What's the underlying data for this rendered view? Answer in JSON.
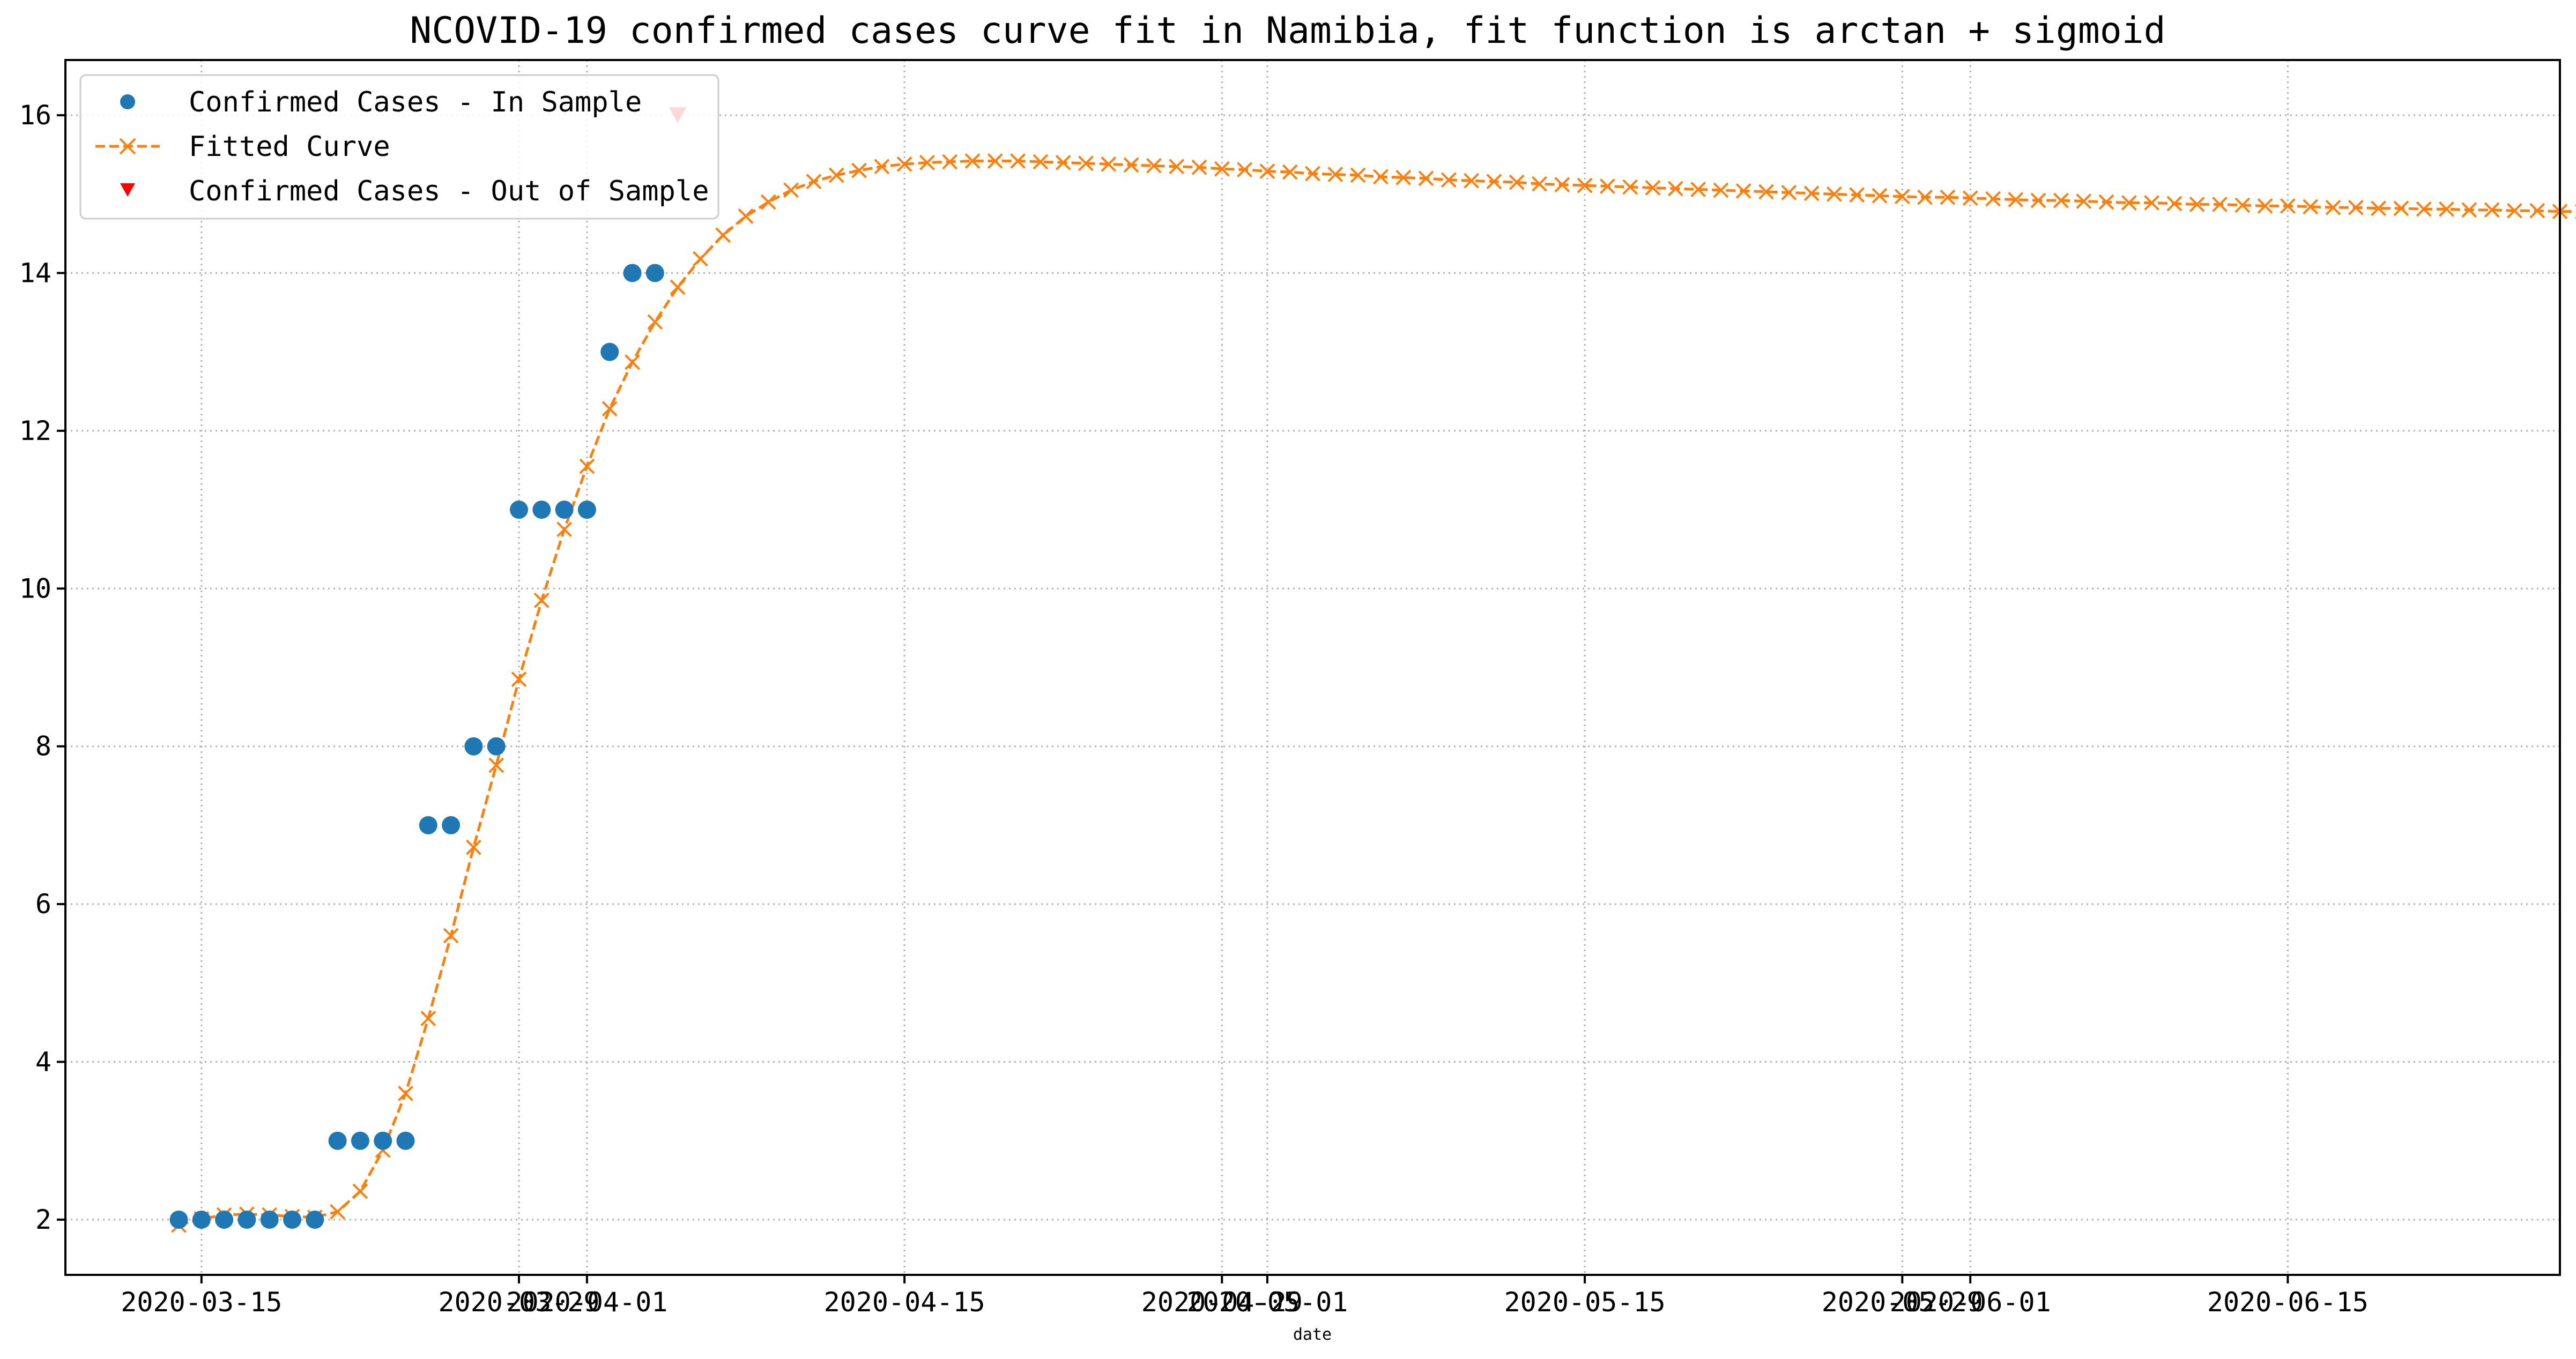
{
  "chart_data": {
    "type": "line",
    "title": "NCOVID-19 confirmed cases curve fit in Namibia, fit function is arctan + sigmoid",
    "xlabel": "date",
    "ylabel": "",
    "x_axis": "date",
    "xlim": [
      "2020-03-09",
      "2020-06-27"
    ],
    "ylim": [
      1.3,
      16.7
    ],
    "grid": true,
    "legend_position": "top-left",
    "x_ticks": [
      "2020-03-15",
      "2020-03-29",
      "2020-04-01",
      "2020-04-15",
      "2020-04-29",
      "2020-05-01",
      "2020-05-15",
      "2020-05-29",
      "2020-06-01",
      "2020-06-15"
    ],
    "x_tick_labels": [
      "2020-03-15",
      "2020-03-29",
      "2020-04-01",
      "2020-04-15",
      "2020-04-29",
      "2020-05-01",
      "2020-05-15",
      "2020-05-29",
      "2020-06-01",
      "2020-06-15"
    ],
    "y_ticks": [
      2,
      4,
      6,
      8,
      10,
      12,
      14,
      16
    ],
    "y_tick_labels": [
      "2",
      "4",
      "6",
      "8",
      "10",
      "12",
      "14",
      "16"
    ],
    "colors": {
      "in_sample": "#1f77b4",
      "fitted": "#ff7f0e",
      "out_of_sample": "#ff0000"
    },
    "series": [
      {
        "name": "Confirmed Cases - In Sample",
        "style": "markers-circle",
        "x": [
          "2020-03-14",
          "2020-03-15",
          "2020-03-16",
          "2020-03-17",
          "2020-03-18",
          "2020-03-19",
          "2020-03-20",
          "2020-03-21",
          "2020-03-22",
          "2020-03-23",
          "2020-03-24",
          "2020-03-25",
          "2020-03-26",
          "2020-03-27",
          "2020-03-28",
          "2020-03-29",
          "2020-03-30",
          "2020-03-31",
          "2020-04-01",
          "2020-04-02",
          "2020-04-03",
          "2020-04-04"
        ],
        "y": [
          2,
          2,
          2,
          2,
          2,
          2,
          2,
          3,
          3,
          3,
          3,
          7,
          7,
          8,
          8,
          11,
          11,
          11,
          11,
          13,
          14,
          14
        ]
      },
      {
        "name": "Fitted Curve",
        "style": "dashed-line-x",
        "x_start": "2020-03-14",
        "x_step_days": 1,
        "y": [
          1.93,
          2.01,
          2.06,
          2.07,
          2.06,
          2.04,
          2.03,
          2.1,
          2.36,
          2.88,
          3.6,
          4.55,
          5.6,
          6.72,
          7.76,
          8.85,
          9.85,
          10.75,
          11.55,
          12.28,
          12.87,
          13.38,
          13.82,
          14.18,
          14.48,
          14.72,
          14.9,
          15.05,
          15.16,
          15.24,
          15.3,
          15.35,
          15.38,
          15.4,
          15.41,
          15.42,
          15.42,
          15.42,
          15.41,
          15.4,
          15.39,
          15.38,
          15.37,
          15.36,
          15.35,
          15.34,
          15.32,
          15.31,
          15.29,
          15.28,
          15.26,
          15.25,
          15.24,
          15.22,
          15.21,
          15.2,
          15.18,
          15.17,
          15.16,
          15.15,
          15.13,
          15.12,
          15.11,
          15.1,
          15.09,
          15.08,
          15.07,
          15.06,
          15.05,
          15.04,
          15.03,
          15.02,
          15.01,
          15.0,
          14.99,
          14.98,
          14.97,
          14.96,
          14.96,
          14.95,
          14.94,
          14.93,
          14.92,
          14.92,
          14.91,
          14.9,
          14.89,
          14.89,
          14.88,
          14.87,
          14.87,
          14.86,
          14.85,
          14.85,
          14.84,
          14.83,
          14.83,
          14.82,
          14.82,
          14.81,
          14.81,
          14.8,
          14.8,
          14.79,
          14.79,
          14.78,
          14.78,
          14.77,
          14.77,
          14.76,
          14.76,
          14.75,
          14.75,
          14.74,
          14.74,
          14.73,
          14.73,
          14.73,
          14.72,
          14.72,
          14.71
        ]
      },
      {
        "name": "Confirmed Cases - Out of Sample",
        "style": "markers-triangle-down",
        "x": [
          "2020-04-05"
        ],
        "y": [
          16
        ]
      }
    ]
  }
}
